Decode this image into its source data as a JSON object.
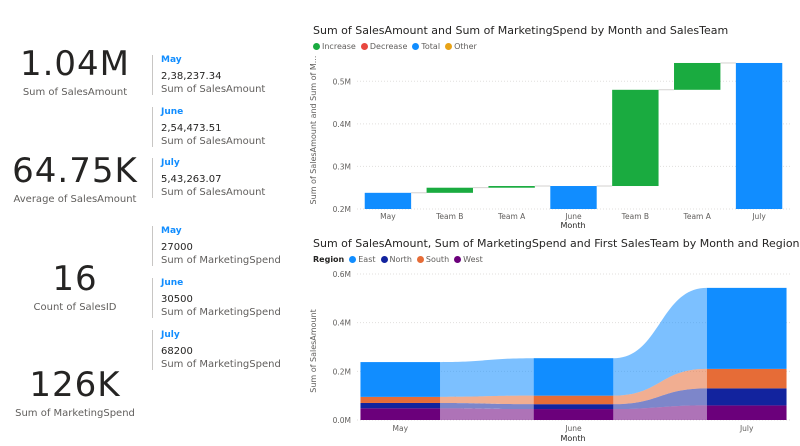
{
  "kpis": [
    {
      "value": "1.04M",
      "label": "Sum of SalesAmount"
    },
    {
      "value": "64.75K",
      "label": "Average of SalesAmount"
    },
    {
      "value": "16",
      "label": "Count of SalesID"
    },
    {
      "value": "126K",
      "label": "Sum of MarketingSpend"
    }
  ],
  "multirow_sales": [
    {
      "month": "May",
      "value": "2,38,237.34",
      "label": "Sum of SalesAmount"
    },
    {
      "month": "June",
      "value": "2,54,473.51",
      "label": "Sum of SalesAmount"
    },
    {
      "month": "July",
      "value": "5,43,263.07",
      "label": "Sum of SalesAmount"
    }
  ],
  "multirow_marketing": [
    {
      "month": "May",
      "value": "27000",
      "label": "Sum of MarketingSpend"
    },
    {
      "month": "June",
      "value": "30500",
      "label": "Sum of MarketingSpend"
    },
    {
      "month": "July",
      "value": "68200",
      "label": "Sum of MarketingSpend"
    }
  ],
  "chart_data": [
    {
      "type": "bar",
      "subtype": "waterfall",
      "title": "Sum of SalesAmount and Sum of MarketingSpend by Month and SalesTeam",
      "legend": [
        {
          "name": "Increase",
          "color": "#1aab40"
        },
        {
          "name": "Decrease",
          "color": "#e8473f"
        },
        {
          "name": "Total",
          "color": "#118dff"
        },
        {
          "name": "Other",
          "color": "#e8a317"
        }
      ],
      "xlabel": "Month",
      "ylabel": "Sum of SalesAmount and Sum of M...",
      "yticks": [
        "0.2M",
        "0.3M",
        "0.4M",
        "0.5M"
      ],
      "ylim": [
        0.2,
        0.55
      ],
      "categories": [
        "May",
        "Team B",
        "Team A",
        "June",
        "Team B",
        "Team A",
        "July"
      ],
      "bars": [
        {
          "kind": "total",
          "start": 0.2,
          "end": 0.238
        },
        {
          "kind": "increase",
          "start": 0.238,
          "end": 0.25
        },
        {
          "kind": "increase",
          "start": 0.25,
          "end": 0.254
        },
        {
          "kind": "total",
          "start": 0.2,
          "end": 0.254
        },
        {
          "kind": "increase",
          "start": 0.254,
          "end": 0.48
        },
        {
          "kind": "increase",
          "start": 0.48,
          "end": 0.543
        },
        {
          "kind": "total",
          "start": 0.2,
          "end": 0.543
        }
      ]
    },
    {
      "type": "area",
      "subtype": "ribbon",
      "title": "Sum of SalesAmount, Sum of MarketingSpend and First SalesTeam by Month and Region",
      "legend_title": "Region",
      "legend": [
        {
          "name": "East",
          "color": "#118dff"
        },
        {
          "name": "North",
          "color": "#12239e"
        },
        {
          "name": "South",
          "color": "#e66c37"
        },
        {
          "name": "West",
          "color": "#6b007b"
        }
      ],
      "xlabel": "Month",
      "ylabel": "Sum of SalesAmount",
      "yticks": [
        "0.0M",
        "0.2M",
        "0.4M",
        "0.6M"
      ],
      "ylim": [
        0,
        0.6
      ],
      "categories": [
        "May",
        "June",
        "July"
      ],
      "tick_labels": [
        "May",
        "",
        "June",
        "",
        "July"
      ],
      "stacks": [
        [
          {
            "name": "West",
            "value": 0.048
          },
          {
            "name": "North",
            "value": 0.022
          },
          {
            "name": "South",
            "value": 0.025
          },
          {
            "name": "East",
            "value": 0.143
          }
        ],
        [
          {
            "name": "West",
            "value": 0.045
          },
          {
            "name": "North",
            "value": 0.02
          },
          {
            "name": "South",
            "value": 0.035
          },
          {
            "name": "East",
            "value": 0.154
          }
        ],
        [
          {
            "name": "West",
            "value": 0.06
          },
          {
            "name": "North",
            "value": 0.07
          },
          {
            "name": "South",
            "value": 0.08
          },
          {
            "name": "East",
            "value": 0.333
          }
        ]
      ]
    }
  ]
}
